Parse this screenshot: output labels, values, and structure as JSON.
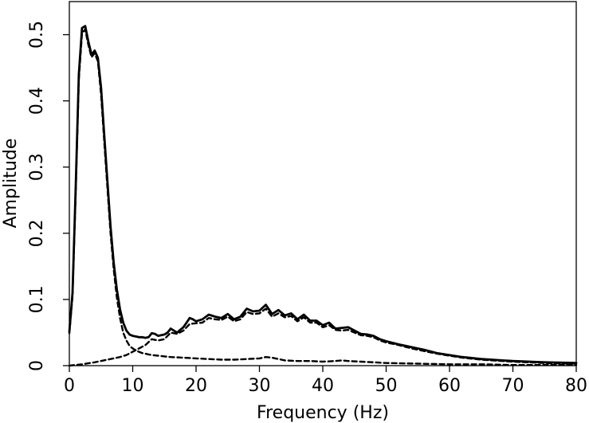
{
  "chart_data": {
    "type": "line",
    "title": "",
    "xlabel": "Frequency (Hz)",
    "ylabel": "Amplitude",
    "xlim": [
      0,
      80
    ],
    "ylim": [
      0,
      0.55
    ],
    "xticks": [
      0,
      10,
      20,
      30,
      40,
      50,
      60,
      70,
      80
    ],
    "yticks": [
      0,
      0.1,
      0.2,
      0.3,
      0.4,
      0.5
    ],
    "xtick_labels": [
      "0",
      "10",
      "20",
      "30",
      "40",
      "50",
      "60",
      "70",
      "80"
    ],
    "ytick_labels": [
      "0",
      "0.1",
      "0.2",
      "0.3",
      "0.4",
      "0.5"
    ],
    "grid": false,
    "legend": "none",
    "series": [
      {
        "style": "solid",
        "color": "#000000",
        "x": [
          0,
          0.5,
          1,
          1.5,
          2,
          2.5,
          3,
          3.5,
          4,
          4.5,
          5,
          5.5,
          6,
          6.5,
          7,
          7.5,
          8,
          8.5,
          9,
          9.5,
          10,
          10.5,
          11,
          11.5,
          12,
          12.5,
          13,
          13.5,
          14,
          14.5,
          15,
          15.5,
          16,
          16.5,
          17,
          17.5,
          18,
          18.5,
          19,
          19.5,
          20,
          21,
          22,
          23,
          24,
          25,
          26,
          27,
          28,
          29,
          30,
          31,
          32,
          33,
          34,
          35,
          36,
          37,
          38,
          39,
          40,
          41,
          42,
          43,
          44,
          45,
          46,
          47,
          48,
          49,
          50,
          52,
          54,
          56,
          58,
          60,
          62,
          65,
          70,
          75,
          80
        ],
        "y": [
          0.051,
          0.11,
          0.27,
          0.44,
          0.51,
          0.513,
          0.49,
          0.47,
          0.476,
          0.465,
          0.42,
          0.35,
          0.28,
          0.21,
          0.155,
          0.115,
          0.085,
          0.065,
          0.053,
          0.047,
          0.045,
          0.044,
          0.043,
          0.043,
          0.042,
          0.043,
          0.049,
          0.048,
          0.045,
          0.046,
          0.047,
          0.05,
          0.056,
          0.053,
          0.05,
          0.054,
          0.058,
          0.065,
          0.072,
          0.07,
          0.067,
          0.07,
          0.077,
          0.074,
          0.072,
          0.078,
          0.07,
          0.074,
          0.086,
          0.082,
          0.083,
          0.092,
          0.078,
          0.084,
          0.076,
          0.079,
          0.07,
          0.077,
          0.068,
          0.068,
          0.061,
          0.065,
          0.056,
          0.057,
          0.058,
          0.053,
          0.048,
          0.047,
          0.045,
          0.04,
          0.037,
          0.032,
          0.028,
          0.024,
          0.019,
          0.016,
          0.013,
          0.01,
          0.007,
          0.005,
          0.004
        ]
      },
      {
        "style": "dashed",
        "color": "#000000",
        "x": [
          0,
          0.5,
          1,
          1.5,
          2,
          2.5,
          3,
          3.5,
          4,
          4.5,
          5,
          5.5,
          6,
          6.5,
          7,
          7.5,
          8,
          8.5,
          9,
          9.5,
          10,
          10.5,
          11,
          11.5,
          12,
          12.5,
          13,
          14,
          15,
          16,
          18,
          20,
          22,
          24,
          26,
          28,
          30,
          31,
          32,
          33,
          34,
          36,
          38,
          40,
          42,
          43,
          44,
          46,
          48,
          50,
          55,
          60,
          65,
          70,
          75,
          80
        ],
        "y": [
          0.049,
          0.105,
          0.262,
          0.432,
          0.502,
          0.508,
          0.485,
          0.466,
          0.472,
          0.46,
          0.41,
          0.34,
          0.27,
          0.2,
          0.145,
          0.103,
          0.072,
          0.05,
          0.038,
          0.03,
          0.026,
          0.023,
          0.021,
          0.019,
          0.018,
          0.017,
          0.016,
          0.015,
          0.014,
          0.013,
          0.012,
          0.011,
          0.01,
          0.009,
          0.009,
          0.01,
          0.011,
          0.013,
          0.012,
          0.01,
          0.008,
          0.007,
          0.007,
          0.006,
          0.007,
          0.008,
          0.007,
          0.006,
          0.005,
          0.004,
          0.003,
          0.002,
          0.002,
          0.001,
          0.001,
          0.001
        ]
      },
      {
        "style": "dashed",
        "color": "#000000",
        "x": [
          0,
          2,
          4,
          6,
          8,
          9,
          10,
          11,
          12,
          13,
          14,
          15,
          16,
          17,
          18,
          19,
          20,
          21,
          22,
          23,
          24,
          25,
          26,
          27,
          28,
          29,
          30,
          31,
          32,
          33,
          34,
          35,
          36,
          37,
          38,
          39,
          40,
          41,
          42,
          43,
          44,
          45,
          46,
          47,
          48,
          49,
          50,
          52,
          54,
          56,
          58,
          60,
          62,
          65,
          70,
          75,
          80
        ],
        "y": [
          0.0,
          0.002,
          0.005,
          0.009,
          0.013,
          0.016,
          0.021,
          0.026,
          0.031,
          0.04,
          0.038,
          0.04,
          0.05,
          0.048,
          0.053,
          0.063,
          0.064,
          0.065,
          0.072,
          0.07,
          0.069,
          0.074,
          0.067,
          0.07,
          0.081,
          0.078,
          0.079,
          0.086,
          0.074,
          0.079,
          0.073,
          0.075,
          0.067,
          0.073,
          0.065,
          0.065,
          0.058,
          0.061,
          0.054,
          0.053,
          0.054,
          0.05,
          0.046,
          0.045,
          0.043,
          0.038,
          0.035,
          0.031,
          0.026,
          0.022,
          0.018,
          0.015,
          0.012,
          0.009,
          0.006,
          0.004,
          0.003
        ]
      }
    ]
  }
}
